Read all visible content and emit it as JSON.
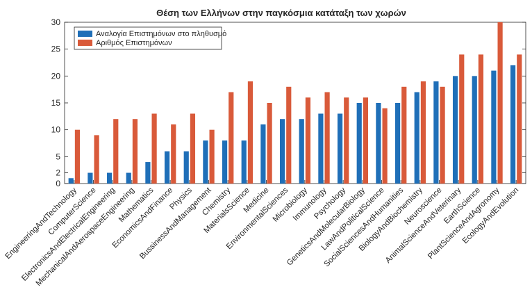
{
  "chart_data": {
    "type": "bar",
    "title": "Θέση των Ελλήνων στην παγκόσμια κατάταξη των χωρών",
    "xlabel": "",
    "ylabel": "",
    "ylim": [
      0,
      30
    ],
    "yticks": [
      0,
      2,
      5,
      10,
      15,
      20,
      25,
      30
    ],
    "grid": false,
    "legend_position": "top-left",
    "categories": [
      "EngineeringAndTechnology",
      "ComputerScience",
      "ElectronicsAndElectricalEngineering",
      "MechanicalAndAerospaceEngineering",
      "Mathematics",
      "EconomicsAndFinance",
      "Physics",
      "BussinessAndManagement",
      "Chemistry",
      "MaterialsScience",
      "Medicine",
      "EnvironmentalSciences",
      "Microbiology",
      "Immunology",
      "Psychology",
      "GeneticsAndMolecularBiology",
      "LawAndPoliticalScience",
      "SocialSciencesAndHumanities",
      "BiologyAndBiochemistry",
      "Neuroscience",
      "AnimalScienceAndVeterinary",
      "EarthScience",
      "PlantScienceAndAgronomy",
      "EcologyAndEvolution"
    ],
    "series": [
      {
        "name": "Αναλογία Επιστημόνων στο πληθυσμό",
        "color": "#1f6fb8",
        "values": [
          1,
          2,
          2,
          2,
          4,
          6,
          6,
          8,
          8,
          8,
          11,
          12,
          12,
          13,
          13,
          15,
          15,
          15,
          17,
          19,
          20,
          20,
          21,
          22
        ]
      },
      {
        "name": "Αριθμός Επιστημόνων",
        "color": "#d95a3a",
        "values": [
          10,
          9,
          12,
          12,
          13,
          11,
          13,
          10,
          17,
          19,
          15,
          18,
          16,
          17,
          16,
          16,
          14,
          18,
          19,
          18,
          24,
          24,
          30,
          24
        ]
      }
    ]
  }
}
